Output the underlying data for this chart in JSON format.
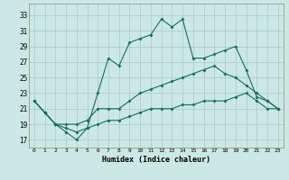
{
  "xlabel": "Humidex (Indice chaleur)",
  "background_color": "#cce8e4",
  "grid_color": "#aacfcb",
  "line_color": "#1a6b60",
  "xlim": [
    -0.5,
    23.5
  ],
  "ylim": [
    16,
    34.5
  ],
  "yticks": [
    17,
    19,
    21,
    23,
    25,
    27,
    29,
    31,
    33
  ],
  "xticks": [
    0,
    1,
    2,
    3,
    4,
    5,
    6,
    7,
    8,
    9,
    10,
    11,
    12,
    13,
    14,
    15,
    16,
    17,
    18,
    19,
    20,
    21,
    22,
    23
  ],
  "line1_x": [
    0,
    1,
    2,
    3,
    4,
    5,
    6,
    7,
    8,
    9,
    10,
    11,
    12,
    13,
    14,
    15,
    16,
    17,
    18,
    19,
    20,
    21,
    22,
    23
  ],
  "line1_y": [
    22,
    20.5,
    19,
    18,
    17,
    18.5,
    23,
    27.5,
    26.5,
    29.5,
    30,
    30.5,
    32.5,
    31.5,
    32.5,
    27.5,
    27.5,
    28,
    28.5,
    29,
    26,
    22.5,
    22,
    21
  ],
  "line2_x": [
    0,
    1,
    2,
    3,
    4,
    5,
    6,
    7,
    8,
    9,
    10,
    11,
    12,
    13,
    14,
    15,
    16,
    17,
    18,
    19,
    20,
    21,
    22,
    23
  ],
  "line2_y": [
    22,
    20.5,
    19,
    19,
    19,
    19.5,
    21,
    21,
    21,
    22,
    23,
    23.5,
    24,
    24.5,
    25,
    25.5,
    26,
    26.5,
    25.5,
    25,
    24,
    23,
    22,
    21
  ],
  "line3_x": [
    0,
    1,
    2,
    3,
    4,
    5,
    6,
    7,
    8,
    9,
    10,
    11,
    12,
    13,
    14,
    15,
    16,
    17,
    18,
    19,
    20,
    21,
    22,
    23
  ],
  "line3_y": [
    22,
    20.5,
    19,
    18.5,
    18,
    18.5,
    19,
    19.5,
    19.5,
    20,
    20.5,
    21,
    21,
    21,
    21.5,
    21.5,
    22,
    22,
    22,
    22.5,
    23,
    22,
    21,
    21
  ]
}
